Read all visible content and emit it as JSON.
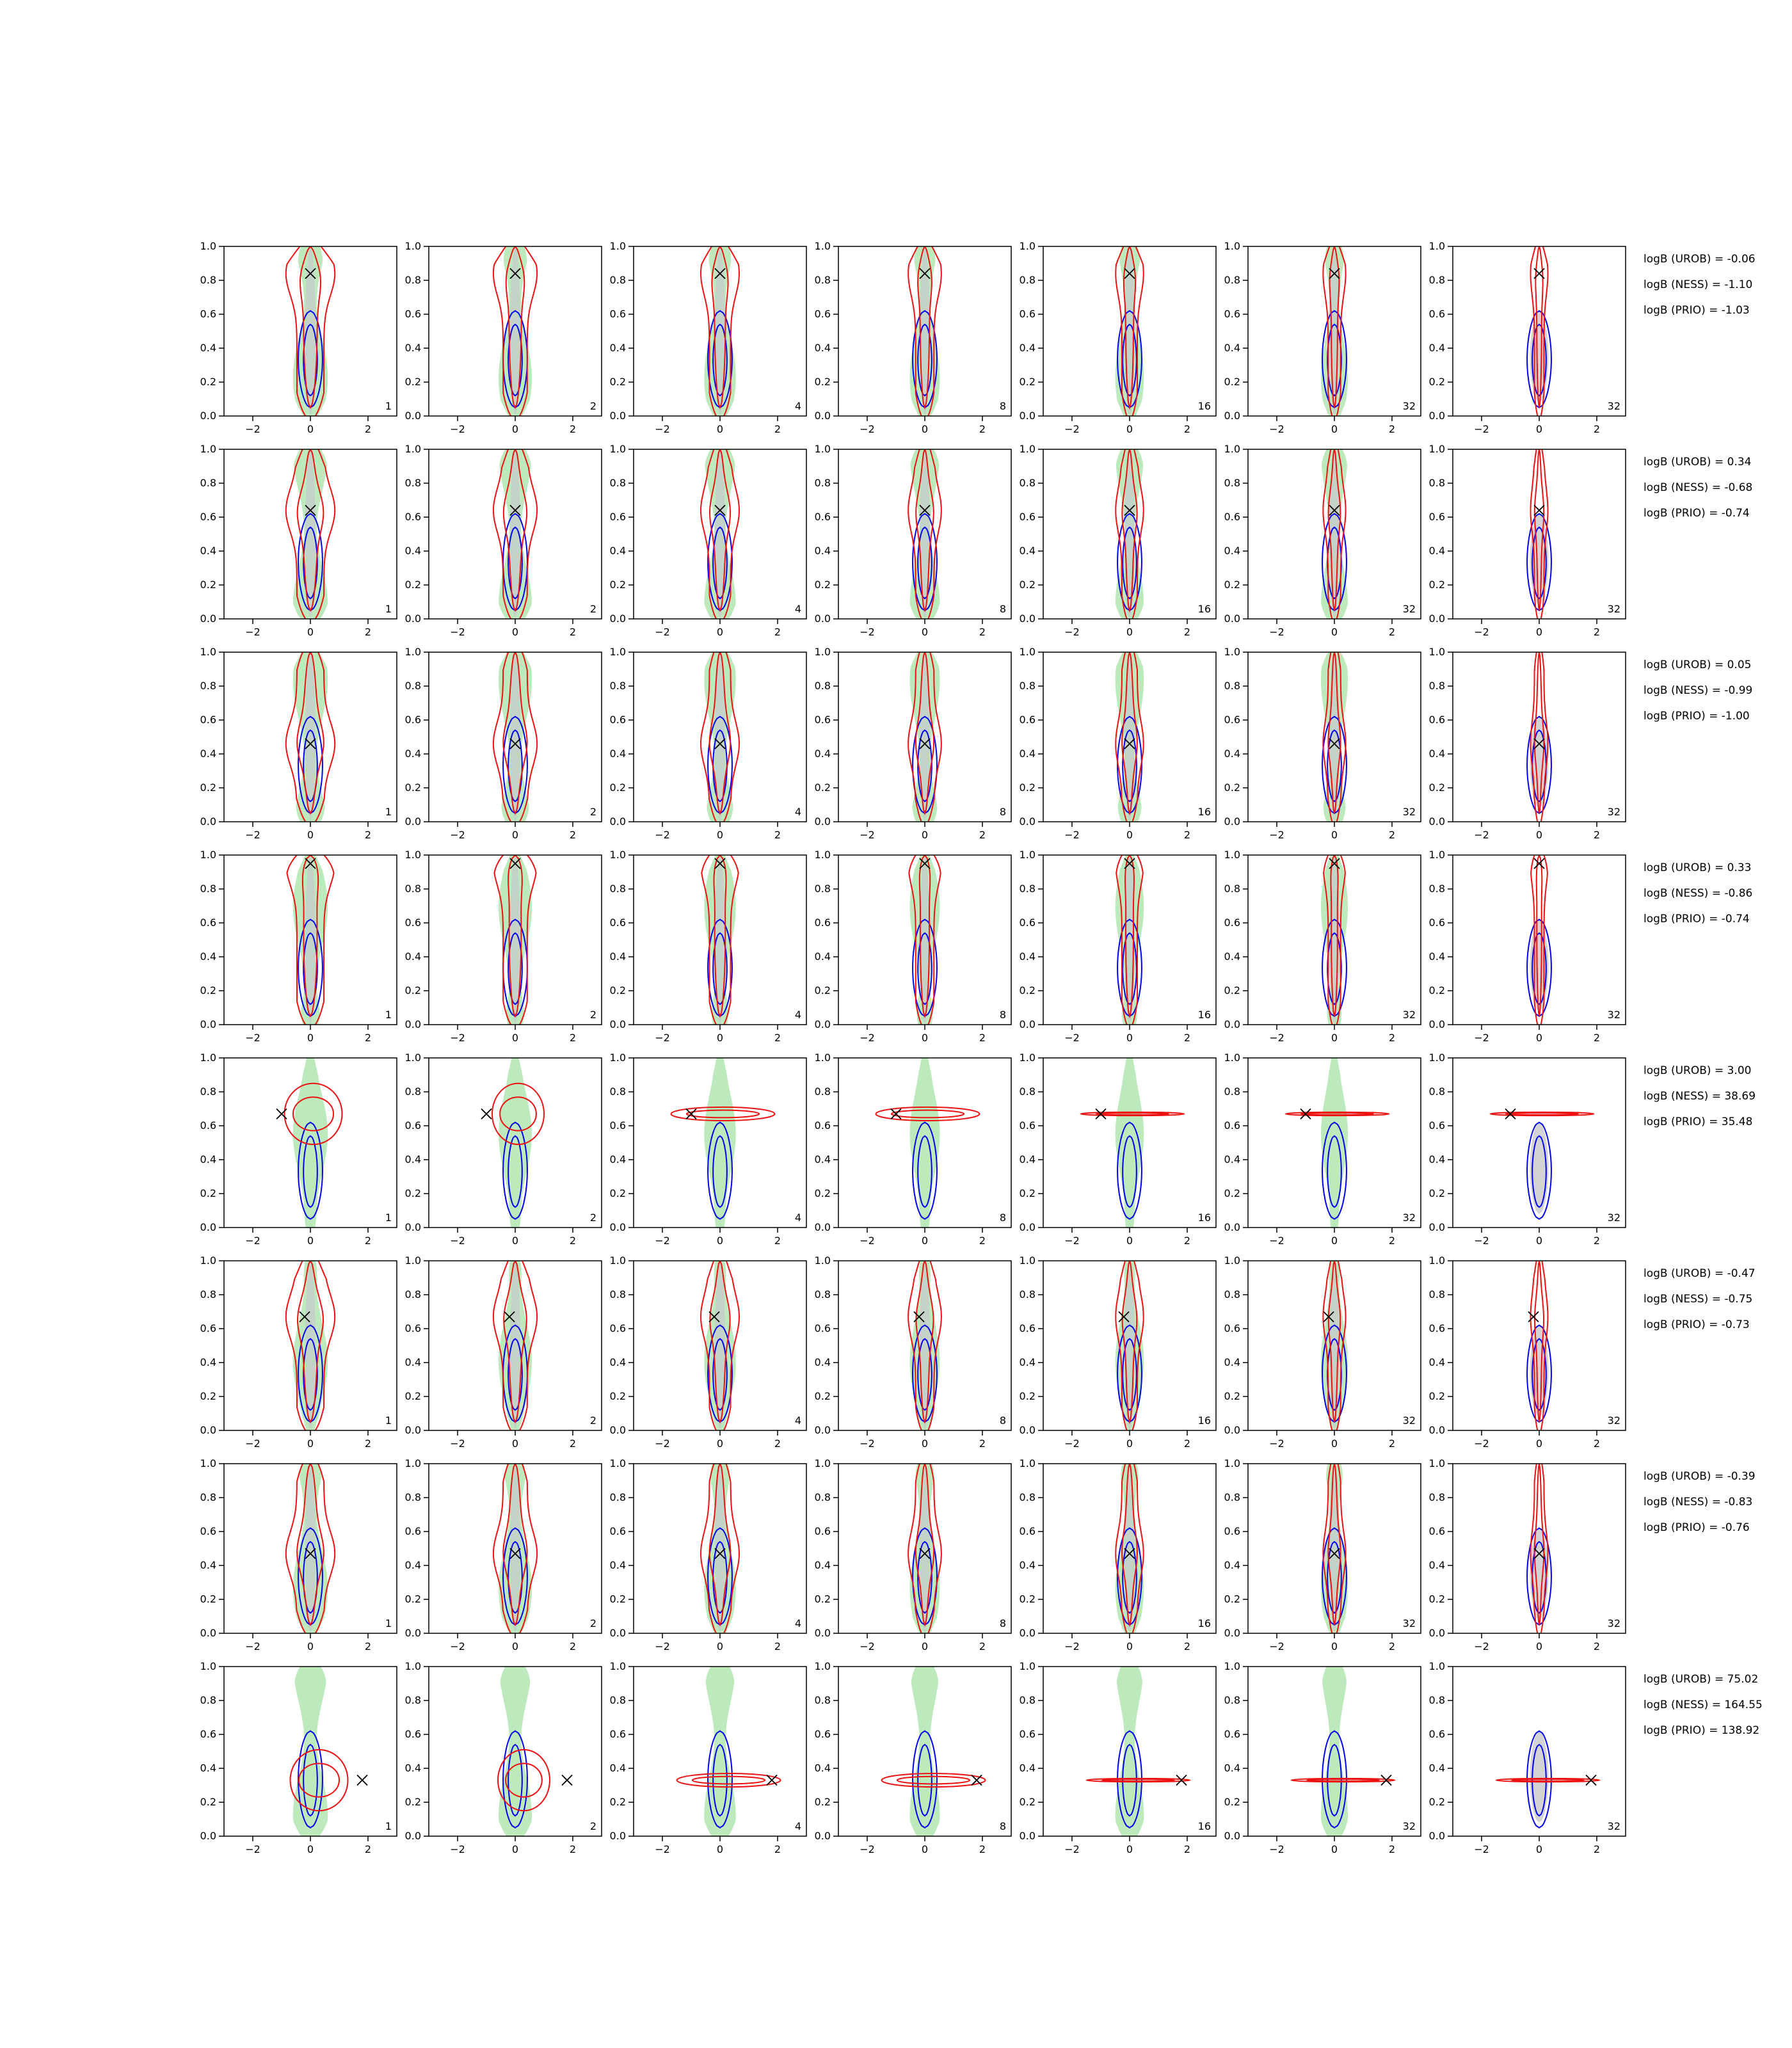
{
  "chart_data": {
    "type": "contour",
    "layout": {
      "rows": 8,
      "cols": 7
    },
    "title": "",
    "xlabel": "",
    "ylabel": "",
    "xlim": [
      -3,
      3
    ],
    "ylim": [
      0,
      1
    ],
    "xticks": [
      -2,
      0,
      2
    ],
    "yticks": [
      0.0,
      0.2,
      0.4,
      0.6,
      0.8,
      1.0
    ],
    "grid": false,
    "colors": {
      "reference_fill": "#bdeabd",
      "blue_contour": "#0000ee",
      "red_contour": "#ee1111",
      "inner_fill": "#c8c8cc",
      "marker": "#000000"
    },
    "panel_labels": [
      "1",
      "2",
      "4",
      "8",
      "16",
      "32",
      "32"
    ],
    "rows": [
      {
        "marker": {
          "x": 0.0,
          "y": 0.84
        },
        "logB": [
          "logB (UROB) = -0.06",
          "logB (NESS) = -1.10",
          "logB (PRIO) = -1.03"
        ]
      },
      {
        "marker": {
          "x": 0.0,
          "y": 0.64
        },
        "logB": [
          "logB (UROB) = 0.34",
          "logB (NESS) = -0.68",
          "logB (PRIO) = -0.74"
        ]
      },
      {
        "marker": {
          "x": 0.0,
          "y": 0.46
        },
        "logB": [
          "logB (UROB) = 0.05",
          "logB (NESS) = -0.99",
          "logB (PRIO) = -1.00"
        ]
      },
      {
        "marker": {
          "x": 0.0,
          "y": 0.95
        },
        "logB": [
          "logB (UROB) = 0.33",
          "logB (NESS) = -0.86",
          "logB (PRIO) = -0.74"
        ]
      },
      {
        "marker": {
          "x": -1.0,
          "y": 0.67
        },
        "logB": [
          "logB (UROB) = 3.00",
          "logB (NESS) = 38.69",
          "logB (PRIO) = 35.48"
        ]
      },
      {
        "marker": {
          "x": -0.2,
          "y": 0.67
        },
        "logB": [
          "logB (UROB) = -0.47",
          "logB (NESS) = -0.75",
          "logB (PRIO) = -0.73"
        ]
      },
      {
        "marker": {
          "x": 0.0,
          "y": 0.47
        },
        "logB": [
          "logB (UROB) = -0.39",
          "logB (NESS) = -0.83",
          "logB (PRIO) = -0.76"
        ]
      },
      {
        "marker": {
          "x": 1.8,
          "y": 0.33
        },
        "logB": [
          "logB (UROB) = 75.02",
          "logB (NESS) = 164.55",
          "logB (PRIO) = 138.92"
        ]
      }
    ]
  }
}
